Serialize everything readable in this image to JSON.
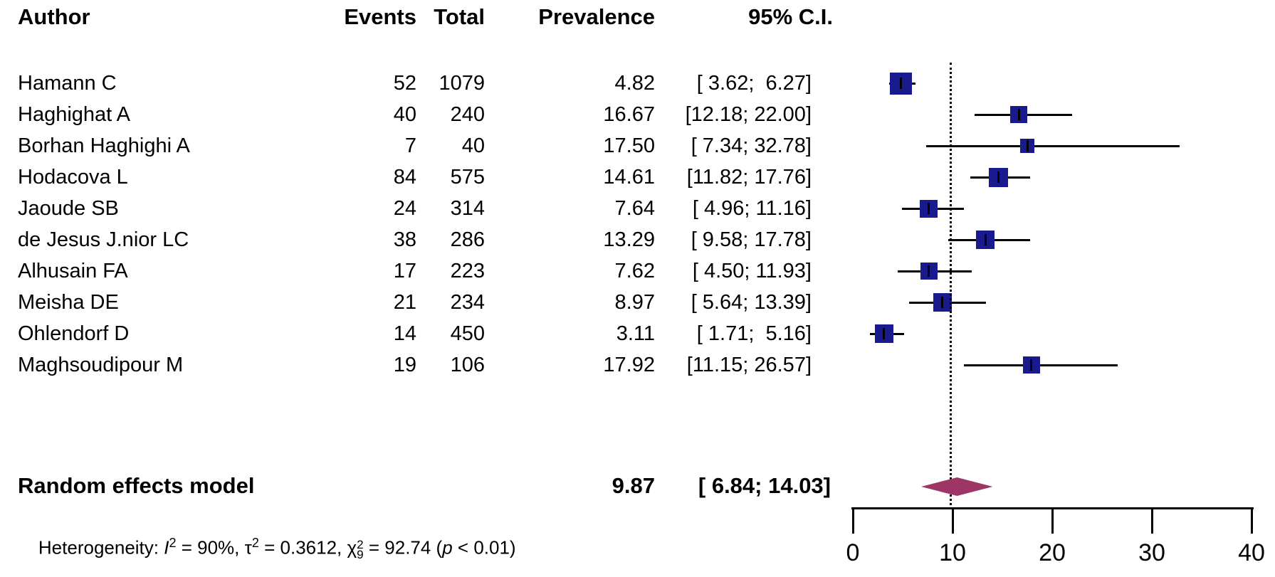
{
  "header": {
    "author": "Author",
    "events": "Events",
    "total": "Total",
    "prevalence": "Prevalence",
    "ci": "95% C.I."
  },
  "studies": [
    {
      "author": "Hamann C",
      "events": "52",
      "total": "1079",
      "prevalence": "4.82",
      "ci": "[ 3.62;  6.27]",
      "est": 4.82,
      "lo": 3.62,
      "hi": 6.27,
      "size": 31
    },
    {
      "author": "Haghighat A",
      "events": "40",
      "total": "240",
      "prevalence": "16.67",
      "ci": "[12.18; 22.00]",
      "est": 16.67,
      "lo": 12.18,
      "hi": 22.0,
      "size": 24
    },
    {
      "author": "Borhan Haghighi A",
      "events": "7",
      "total": "40",
      "prevalence": "17.50",
      "ci": "[ 7.34; 32.78]",
      "est": 17.5,
      "lo": 7.34,
      "hi": 32.78,
      "size": 20
    },
    {
      "author": "Hodacova L",
      "events": "84",
      "total": "575",
      "prevalence": "14.61",
      "ci": "[11.82; 17.76]",
      "est": 14.61,
      "lo": 11.82,
      "hi": 17.76,
      "size": 27
    },
    {
      "author": "Jaoude SB",
      "events": "24",
      "total": "314",
      "prevalence": "7.64",
      "ci": "[ 4.96; 11.16]",
      "est": 7.64,
      "lo": 4.96,
      "hi": 11.16,
      "size": 25
    },
    {
      "author": "de Jesus J.nior LC",
      "events": "38",
      "total": "286",
      "prevalence": "13.29",
      "ci": "[ 9.58; 17.78]",
      "est": 13.29,
      "lo": 9.58,
      "hi": 17.78,
      "size": 26
    },
    {
      "author": "Alhusain FA",
      "events": "17",
      "total": "223",
      "prevalence": "7.62",
      "ci": "[ 4.50; 11.93]",
      "est": 7.62,
      "lo": 4.5,
      "hi": 11.93,
      "size": 24
    },
    {
      "author": "Meisha DE",
      "events": "21",
      "total": "234",
      "prevalence": "8.97",
      "ci": "[ 5.64; 13.39]",
      "est": 8.97,
      "lo": 5.64,
      "hi": 13.39,
      "size": 26
    },
    {
      "author": "Ohlendorf D",
      "events": "14",
      "total": "450",
      "prevalence": "3.11",
      "ci": "[ 1.71;  5.16]",
      "est": 3.11,
      "lo": 1.71,
      "hi": 5.16,
      "size": 26
    },
    {
      "author": "Maghsoudipour M",
      "events": "19",
      "total": "106",
      "prevalence": "17.92",
      "ci": "[11.15; 26.57]",
      "est": 17.92,
      "lo": 11.15,
      "hi": 26.57,
      "size": 24
    }
  ],
  "summary": {
    "label": "Random effects model",
    "prevalence": "9.87",
    "ci": "[ 6.84; 14.03]",
    "est": 9.87,
    "lo": 6.84,
    "hi": 14.03
  },
  "heterogeneity": {
    "prefix": "Heterogeneity: ",
    "i_label": "I",
    "i_sup": "2",
    "i_rest": " = 90%, ",
    "tau_label": "τ",
    "tau_sup": "2",
    "tau_rest": " = 0.3612, ",
    "chi_label": "χ",
    "chi_sup": "2",
    "chi_sub": "9",
    "chi_rest": " = 92.74 (",
    "p_label": "p",
    "p_rest": " < 0.01)"
  },
  "axis": {
    "ticks": [
      "0",
      "10",
      "20",
      "30",
      "40"
    ],
    "tick_values": [
      0,
      10,
      20,
      30,
      40
    ],
    "min": 0,
    "max": 40,
    "reference_line": 9.87
  },
  "colors": {
    "square": "#1a1a8f",
    "diamond": "#9d3567",
    "line": "#000000",
    "text": "#000000",
    "background": "#ffffff"
  },
  "chart_data": {
    "type": "forest",
    "title": "",
    "columns": [
      "Author",
      "Events",
      "Total",
      "Prevalence",
      "95% C.I."
    ],
    "x_ticks": [
      0,
      10,
      20,
      30,
      40
    ],
    "xlim": [
      0,
      40
    ],
    "reference_line": 9.87,
    "studies": [
      {
        "author": "Hamann C",
        "events": 52,
        "total": 1079,
        "prevalence": 4.82,
        "ci_low": 3.62,
        "ci_high": 6.27
      },
      {
        "author": "Haghighat A",
        "events": 40,
        "total": 240,
        "prevalence": 16.67,
        "ci_low": 12.18,
        "ci_high": 22.0
      },
      {
        "author": "Borhan Haghighi A",
        "events": 7,
        "total": 40,
        "prevalence": 17.5,
        "ci_low": 7.34,
        "ci_high": 32.78
      },
      {
        "author": "Hodacova L",
        "events": 84,
        "total": 575,
        "prevalence": 14.61,
        "ci_low": 11.82,
        "ci_high": 17.76
      },
      {
        "author": "Jaoude SB",
        "events": 24,
        "total": 314,
        "prevalence": 7.64,
        "ci_low": 4.96,
        "ci_high": 11.16
      },
      {
        "author": "de Jesus J.nior LC",
        "events": 38,
        "total": 286,
        "prevalence": 13.29,
        "ci_low": 9.58,
        "ci_high": 17.78
      },
      {
        "author": "Alhusain FA",
        "events": 17,
        "total": 223,
        "prevalence": 7.62,
        "ci_low": 4.5,
        "ci_high": 11.93
      },
      {
        "author": "Meisha DE",
        "events": 21,
        "total": 234,
        "prevalence": 8.97,
        "ci_low": 5.64,
        "ci_high": 13.39
      },
      {
        "author": "Ohlendorf D",
        "events": 14,
        "total": 450,
        "prevalence": 3.11,
        "ci_low": 1.71,
        "ci_high": 5.16
      },
      {
        "author": "Maghsoudipour M",
        "events": 19,
        "total": 106,
        "prevalence": 17.92,
        "ci_low": 11.15,
        "ci_high": 26.57
      }
    ],
    "summary": {
      "label": "Random effects model",
      "prevalence": 9.87,
      "ci_low": 6.84,
      "ci_high": 14.03
    },
    "heterogeneity": {
      "I2": "90%",
      "tau2": 0.3612,
      "chi2_df9": 92.74,
      "p": "< 0.01"
    }
  }
}
